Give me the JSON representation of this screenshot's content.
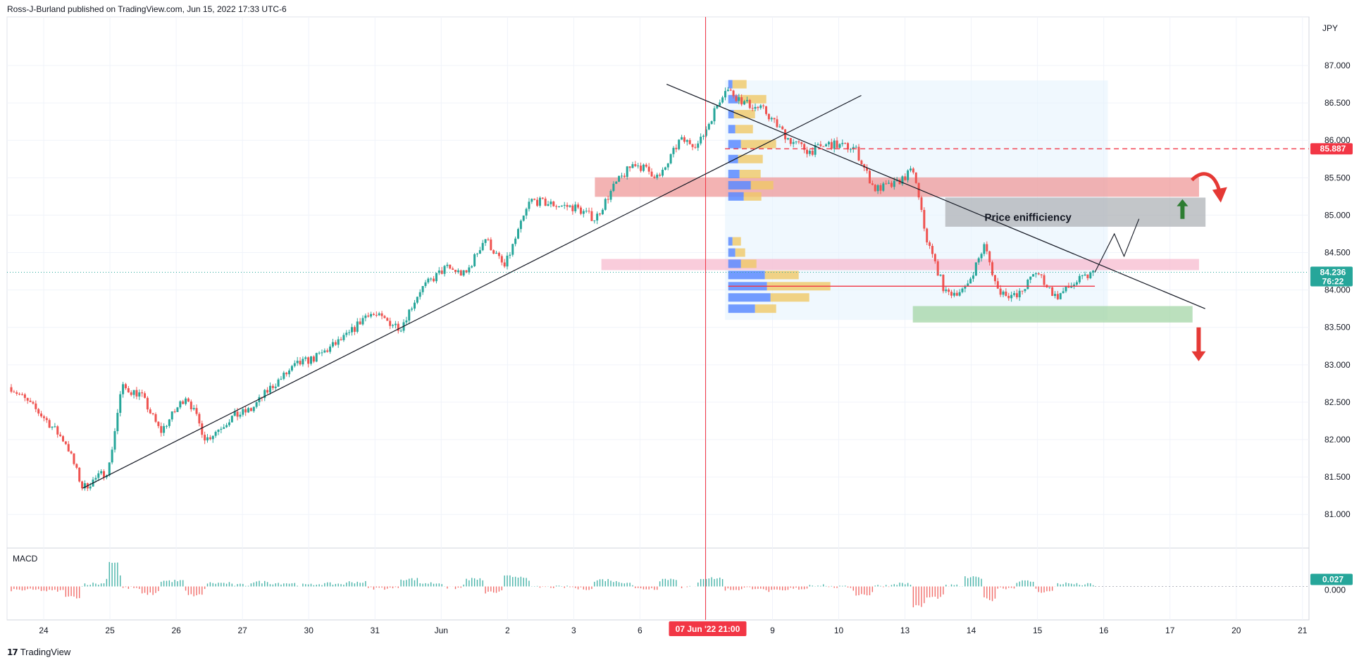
{
  "header": {
    "text": "Ross-J-Burland published on TradingView.com, Jun 15, 2022 17:33 UTC-6"
  },
  "footer": {
    "brand": "TradingView"
  },
  "colors": {
    "up": "#26a69a",
    "down": "#ef5350",
    "level": "#f23645",
    "trend": "#131722",
    "macd_up": "#26a69a",
    "macd_down": "#ef5350"
  },
  "chart_data": [
    {
      "type": "candlestick",
      "currency": "JPY",
      "price_axis": {
        "ticks": [
          87.0,
          86.5,
          86.0,
          85.5,
          85.0,
          84.5,
          84.0,
          83.5,
          83.0,
          82.5,
          82.0,
          81.5,
          81.0
        ]
      },
      "ylim": [
        80.55,
        87.65
      ],
      "time_axis": {
        "labels": [
          "24",
          "25",
          "26",
          "27",
          "30",
          "31",
          "Jun",
          "2",
          "3",
          "6",
          "7",
          "9",
          "10",
          "13",
          "14",
          "15",
          "16",
          "17",
          "20",
          "21"
        ]
      },
      "crosshair": {
        "date_label": "07 Jun '22  21:00"
      },
      "price_badges": [
        {
          "value": "85.887",
          "color": "#f23645"
        },
        {
          "value": "84.236",
          "sub": "76:22",
          "color": "#26a69a"
        }
      ],
      "annotations": [
        {
          "text": "Price enifficiency"
        }
      ],
      "trendlines": [
        {
          "name": "rising-support",
          "p1": [
            24.4,
            81.35
          ],
          "p2": [
            36.4,
            86.6
          ]
        },
        {
          "name": "falling-resistance",
          "p1": [
            33.4,
            86.75
          ],
          "p2": [
            41.7,
            83.75
          ]
        }
      ],
      "zones": [
        {
          "name": "supply-zone",
          "x": [
            32.3,
            41.6
          ],
          "y": [
            85.25,
            85.5
          ],
          "color": "#ef9a9a"
        },
        {
          "name": "inefficiency-zone",
          "x": [
            37.7,
            41.7
          ],
          "y": [
            84.85,
            85.23
          ],
          "color": "#b0b3b8"
        },
        {
          "name": "mid-zone",
          "x": [
            32.4,
            41.6
          ],
          "y": [
            84.27,
            84.41
          ],
          "color": "#f8bbd0"
        },
        {
          "name": "demand-zone",
          "x": [
            37.2,
            41.5
          ],
          "y": [
            83.57,
            83.78
          ],
          "color": "#a5d6a7"
        }
      ],
      "dates_x": [
        23.3,
        24.3,
        25.3,
        26.3,
        27.3,
        28.3,
        29.3,
        30.3,
        31.3,
        32.3,
        33.3,
        34.3,
        35.3,
        36.3,
        37.3,
        38.3,
        39.3
      ],
      "close_path": [
        [
          23.3,
          82.7
        ],
        [
          23.8,
          82.3
        ],
        [
          24.15,
          81.95
        ],
        [
          24.4,
          81.35
        ],
        [
          24.8,
          81.6
        ],
        [
          25.0,
          82.7
        ],
        [
          25.3,
          82.6
        ],
        [
          25.6,
          82.1
        ],
        [
          26.0,
          82.6
        ],
        [
          26.3,
          82.0
        ],
        [
          26.7,
          82.3
        ],
        [
          27.0,
          82.4
        ],
        [
          27.3,
          82.7
        ],
        [
          27.7,
          83.0
        ],
        [
          28.0,
          83.1
        ],
        [
          28.5,
          83.4
        ],
        [
          28.8,
          83.7
        ],
        [
          29.3,
          83.5
        ],
        [
          29.6,
          84.0
        ],
        [
          30.0,
          84.3
        ],
        [
          30.3,
          84.2
        ],
        [
          30.6,
          84.7
        ],
        [
          30.9,
          84.3
        ],
        [
          31.3,
          85.2
        ],
        [
          31.6,
          85.15
        ],
        [
          32.0,
          85.1
        ],
        [
          32.3,
          84.95
        ],
        [
          32.6,
          85.4
        ],
        [
          32.9,
          85.7
        ],
        [
          33.3,
          85.5
        ],
        [
          33.6,
          86.0
        ],
        [
          33.9,
          85.95
        ],
        [
          34.3,
          86.7
        ],
        [
          34.6,
          86.5
        ],
        [
          34.9,
          86.4
        ],
        [
          35.3,
          86.0
        ],
        [
          35.6,
          85.85
        ],
        [
          35.9,
          85.95
        ],
        [
          36.3,
          85.9
        ],
        [
          36.6,
          85.35
        ],
        [
          36.9,
          85.4
        ],
        [
          37.2,
          85.6
        ],
        [
          37.4,
          84.7
        ],
        [
          37.7,
          83.95
        ],
        [
          38.0,
          84.0
        ],
        [
          38.3,
          84.6
        ],
        [
          38.5,
          84.0
        ],
        [
          38.8,
          83.9
        ],
        [
          39.1,
          84.25
        ],
        [
          39.4,
          83.9
        ],
        [
          39.7,
          84.1
        ],
        [
          40.0,
          84.236
        ]
      ],
      "projection": [
        [
          40.0,
          84.236
        ],
        [
          40.3,
          84.75
        ],
        [
          40.45,
          84.45
        ],
        [
          40.68,
          84.95
        ]
      ]
    },
    {
      "type": "bar",
      "name": "MACD",
      "label": "MACD",
      "value_badge": "0.027",
      "axis_label": "0.000",
      "ylim": [
        -0.35,
        0.35
      ]
    }
  ]
}
